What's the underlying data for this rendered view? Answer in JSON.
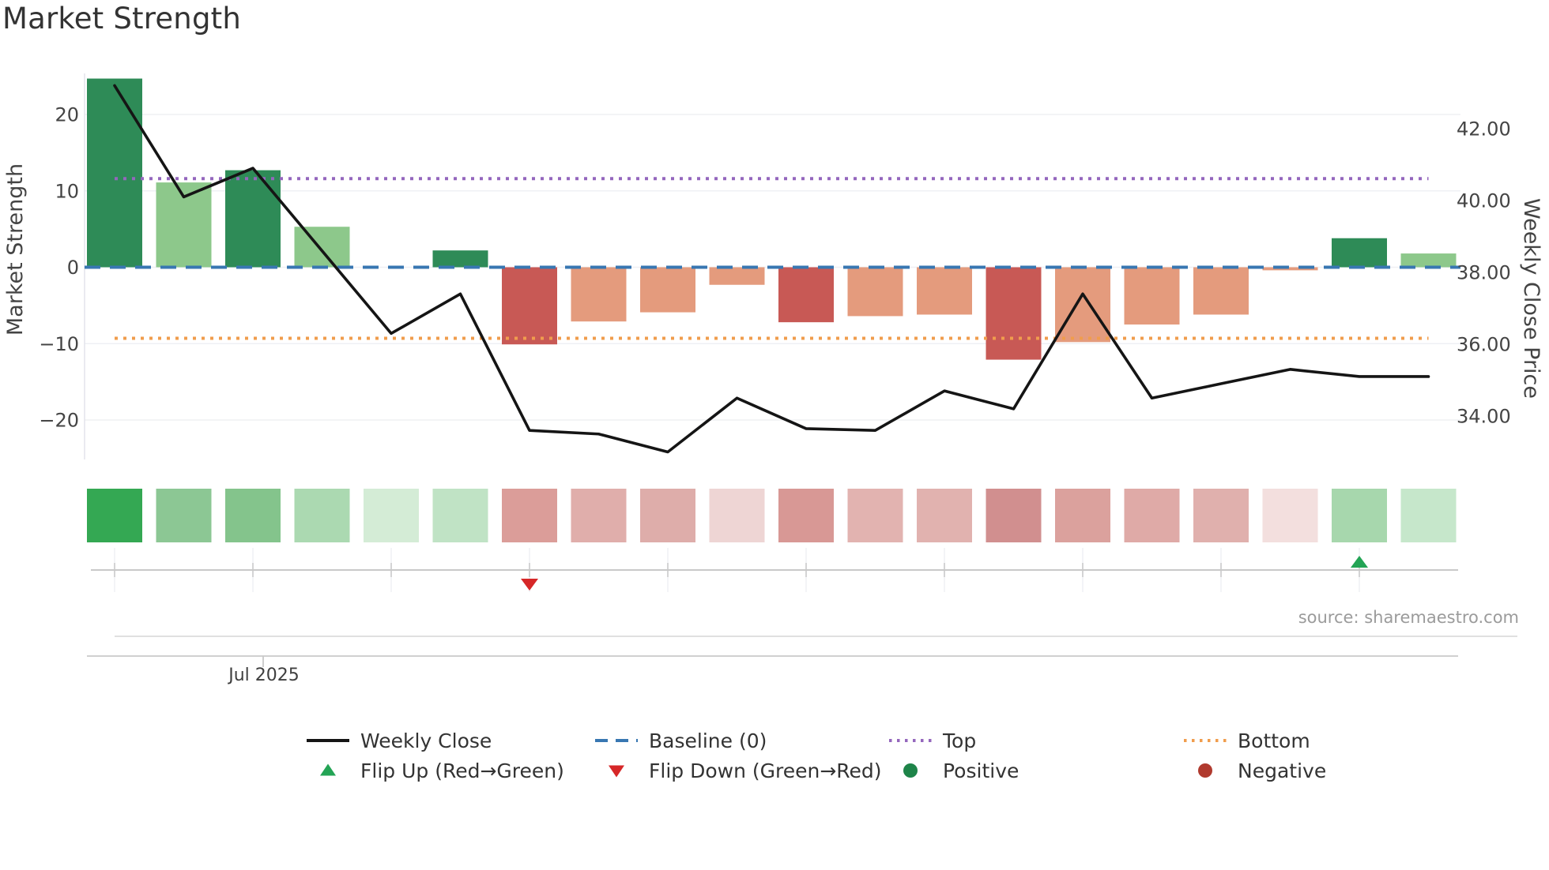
{
  "title": "Market Strength",
  "source_note": "source: sharemaestro.com",
  "axes": {
    "left": {
      "title": "Market Strength",
      "ticks": [
        "20",
        "10",
        "0",
        "−10",
        "−20"
      ],
      "tick_values": [
        20,
        10,
        0,
        -10,
        -20
      ]
    },
    "right": {
      "title": "Weekly Close Price",
      "ticks": [
        "42.00",
        "40.00",
        "38.00",
        "36.00",
        "34.00"
      ],
      "tick_values": [
        42,
        40,
        38,
        36,
        34
      ]
    },
    "x": {
      "label": "Jul 2025"
    }
  },
  "chart_data": {
    "type": "bar+line (dual axis) with heatmap strip and flip markers",
    "weeks": 20,
    "bar_series": {
      "name": "Market Strength",
      "axis": "left",
      "values": [
        24.7,
        11.1,
        12.7,
        5.3,
        0.1,
        2.2,
        -10.1,
        -7.1,
        -5.9,
        -2.3,
        -7.2,
        -6.4,
        -6.2,
        -12.1,
        -9.8,
        -7.5,
        -6.2,
        -0.4,
        3.8,
        1.8
      ],
      "color_keys": [
        "bar_strong_green",
        "bar_light_green",
        "bar_strong_green",
        "bar_light_green",
        "bar_light_green",
        "bar_strong_green",
        "bar_strong_red",
        "bar_salmon",
        "bar_salmon",
        "bar_salmon",
        "bar_strong_red",
        "bar_salmon",
        "bar_salmon",
        "bar_strong_red",
        "bar_salmon",
        "bar_salmon",
        "bar_salmon",
        "bar_salmon",
        "bar_strong_green",
        "bar_light_green"
      ]
    },
    "line_series": {
      "name": "Weekly Close",
      "axis": "right",
      "values": [
        43.2,
        40.1,
        40.9,
        38.6,
        36.3,
        37.4,
        33.6,
        33.5,
        33.0,
        34.5,
        33.65,
        33.6,
        34.7,
        34.2,
        37.4,
        34.5,
        34.9,
        35.3,
        35.1,
        35.1
      ]
    },
    "reference_lines": [
      {
        "name": "Baseline (0)",
        "value": 0,
        "axis": "left",
        "style": "dashed",
        "color_key": "baseline"
      },
      {
        "name": "Top",
        "value": 11.6,
        "axis": "left",
        "style": "dotted",
        "color_key": "top"
      },
      {
        "name": "Bottom",
        "value": -9.3,
        "axis": "left",
        "style": "dotted",
        "color_key": "bottom"
      }
    ],
    "flip_markers": [
      {
        "type": "flip_down",
        "week": 7,
        "label": "Flip Down (Green→Red)"
      },
      {
        "type": "flip_up",
        "week": 19,
        "label": "Flip Up (Red→Green)"
      }
    ],
    "heatmap_row": {
      "colors": [
        "#34a853",
        "#8cc794",
        "#84c48c",
        "#abd9b1",
        "#d4ecd6",
        "#c0e3c5",
        "#db9d99",
        "#e0aeab",
        "#deadaa",
        "#eed5d4",
        "#d89895",
        "#e2b3b0",
        "#e1b2af",
        "#d18f8f",
        "#dba19d",
        "#dfaaa7",
        "#e0b0ad",
        "#f3dfde",
        "#a7d7ad",
        "#c6e7cb"
      ]
    },
    "left_ylim": [
      -25.0,
      25.2
    ],
    "right_ylim": [
      32.8,
      43.5
    ],
    "grid": "horizontal, at left-axis ticks",
    "legend_position": "bottom"
  },
  "colors": {
    "bar_strong_green": "#2e8b57",
    "bar_light_green": "#8dc88b",
    "bar_strong_red": "#c85955",
    "bar_salmon": "#e49b7d",
    "line": "#151515",
    "baseline": "#3877b2",
    "top": "#9467bd",
    "bottom": "#f09d4d",
    "flip_up": "#23a455",
    "flip_down": "#d62728",
    "positive_dot": "#1e8449",
    "negative_dot": "#b03a2e",
    "grid": "#eff0f4",
    "spine": "#e4e4ec",
    "minor_axis": "#c9c9c9",
    "bottom_rule": "#d6d6d6",
    "axis_text": "#444444",
    "title_text": "#333333",
    "source_text": "#9b9b9b"
  },
  "legend": {
    "rows": [
      [
        {
          "key": "weekly_close",
          "label": "Weekly Close"
        },
        {
          "key": "baseline",
          "label": "Baseline (0)"
        },
        {
          "key": "top",
          "label": "Top"
        },
        {
          "key": "bottom",
          "label": "Bottom"
        }
      ],
      [
        {
          "key": "flip_up",
          "label": "Flip Up (Red→Green)"
        },
        {
          "key": "flip_down",
          "label": "Flip Down (Green→Red)"
        },
        {
          "key": "positive",
          "label": "Positive"
        },
        {
          "key": "negative",
          "label": "Negative"
        }
      ]
    ]
  }
}
